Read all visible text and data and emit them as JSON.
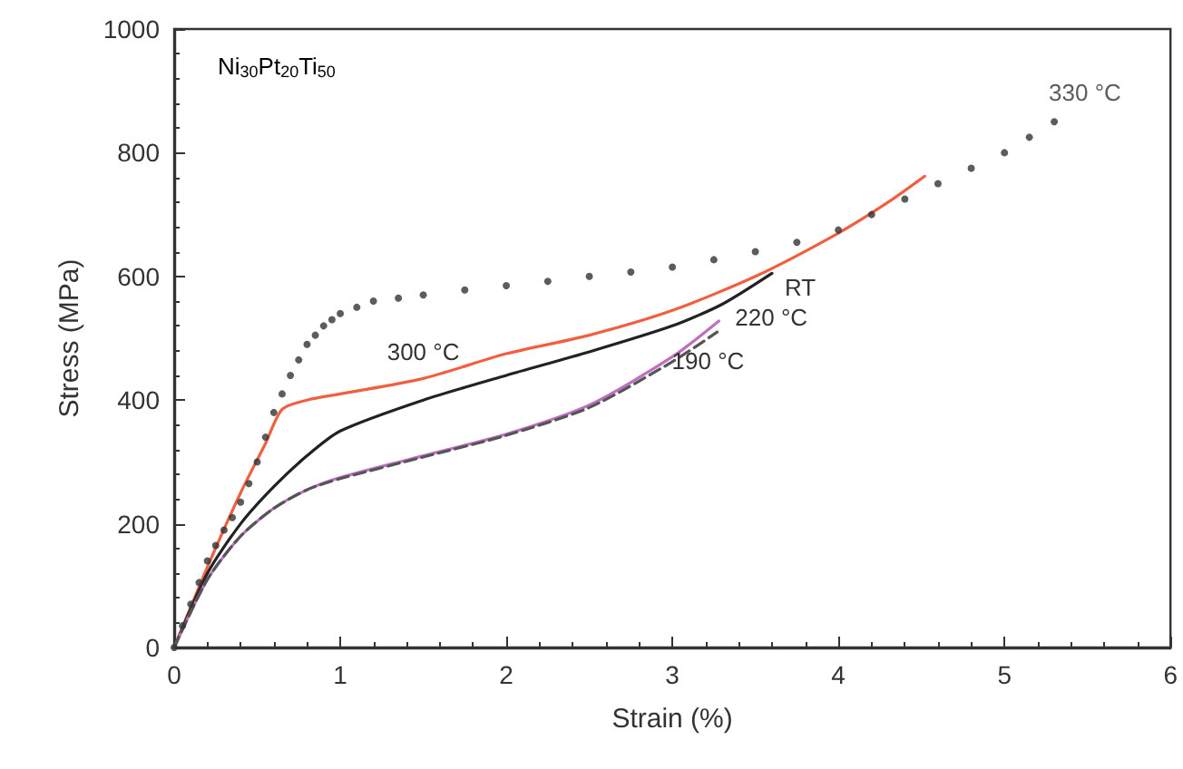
{
  "chart_data": {
    "type": "line",
    "xlabel": "Strain (%)",
    "ylabel": "Stress (MPa)",
    "xlim": [
      0,
      6
    ],
    "xticks": [
      0,
      1,
      2,
      3,
      4,
      5,
      6
    ],
    "ylim": [
      0,
      1000
    ],
    "yticks": [
      0,
      200,
      400,
      600,
      800,
      1000
    ],
    "grid": false,
    "legend": false,
    "annotations": [
      "Ni$_{30}$Pt$_{20}$Ti$_{50}$"
    ],
    "series": [
      {
        "name": "330 °C",
        "type": "scatter",
        "marker": "circle",
        "color": "#333333",
        "x": [
          0,
          0.05,
          0.1,
          0.15,
          0.2,
          0.25,
          0.3,
          0.35,
          0.4,
          0.45,
          0.5,
          0.55,
          0.6,
          0.65,
          0.7,
          0.75,
          0.8,
          0.85,
          0.9,
          0.95,
          1.0,
          1.1,
          1.2,
          1.35,
          1.5,
          1.75,
          2,
          2.25,
          2.5,
          2.75,
          3,
          3.25,
          3.5,
          3.75,
          4,
          4.2,
          4.4,
          4.6,
          4.8,
          5,
          5.15,
          5.3
        ],
        "values": [
          0,
          35,
          70,
          105,
          140,
          165,
          190,
          210,
          235,
          265,
          300,
          340,
          380,
          410,
          440,
          465,
          490,
          505,
          520,
          530,
          540,
          550,
          560,
          565,
          570,
          578,
          585,
          592,
          600,
          607,
          615,
          627,
          640,
          655,
          675,
          700,
          725,
          750,
          775,
          800,
          825,
          850
        ]
      },
      {
        "name": "300 °C",
        "color": "#f06040",
        "line_style": "solid",
        "x": [
          0,
          0.2,
          0.4,
          0.55,
          0.65,
          0.8,
          1,
          1.5,
          2,
          2.5,
          3,
          3.5,
          4,
          4.3,
          4.52
        ],
        "values": [
          0,
          130,
          250,
          330,
          385,
          400,
          410,
          435,
          475,
          505,
          545,
          600,
          670,
          720,
          762
        ]
      },
      {
        "name": "RT",
        "color": "#222222",
        "line_style": "solid",
        "x": [
          0,
          0.2,
          0.4,
          0.6,
          0.8,
          1,
          1.5,
          2,
          2.5,
          3,
          3.3,
          3.6
        ],
        "values": [
          0,
          120,
          200,
          260,
          310,
          350,
          400,
          440,
          478,
          520,
          555,
          605
        ]
      },
      {
        "name": "220 °C",
        "color": "#c070c0",
        "line_style": "solid",
        "x": [
          0,
          0.2,
          0.4,
          0.6,
          0.8,
          1,
          1.5,
          2,
          2.5,
          3,
          3.28
        ],
        "values": [
          0,
          110,
          180,
          225,
          255,
          275,
          310,
          345,
          392,
          470,
          528
        ]
      },
      {
        "name": "190 °C",
        "color": "#555555",
        "line_style": "dashed",
        "x": [
          0,
          0.2,
          0.4,
          0.6,
          0.8,
          1,
          1.5,
          2,
          2.5,
          3,
          3.27
        ],
        "values": [
          0,
          110,
          180,
          225,
          255,
          273,
          308,
          343,
          388,
          462,
          510
        ]
      }
    ]
  }
}
